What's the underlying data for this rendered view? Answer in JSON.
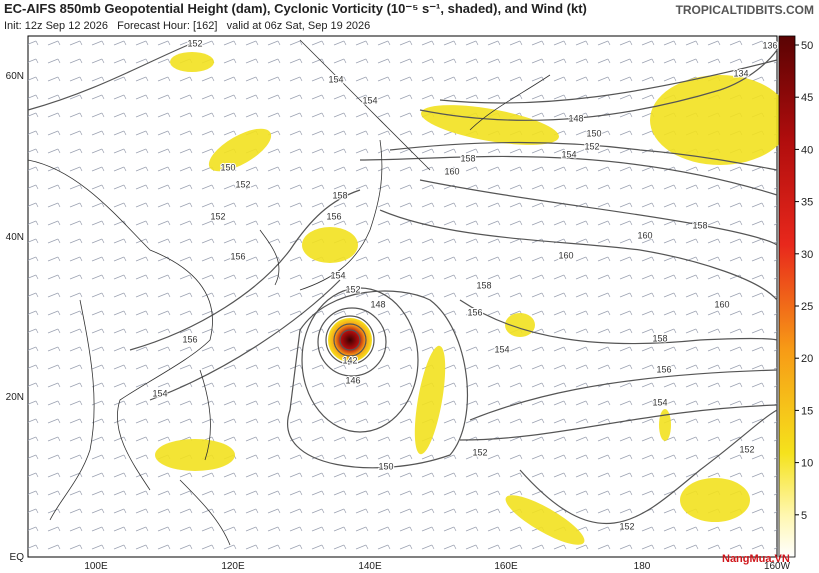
{
  "header": {
    "title": "EC-AIFS 850mb Geopotential Height (dam), Cyclonic Vorticity (10⁻⁵ s⁻¹, shaded), and Wind (kt)",
    "subtitle": "Init: 12z Sep 12 2026   Forecast Hour: [162]   valid at 06z Sat, Sep 19 2026",
    "source": "TROPICALTIDBITS.COM"
  },
  "map": {
    "lat_labels": [
      "60N",
      "40N",
      "20N",
      "EQ"
    ],
    "lon_labels": [
      "100E",
      "120E",
      "140E",
      "160E",
      "180",
      "160W"
    ],
    "contour_labels": [
      152,
      154,
      154,
      150,
      152,
      152,
      156,
      158,
      156,
      154,
      152,
      148,
      142,
      146,
      150,
      152,
      156,
      154,
      158,
      160,
      160,
      158,
      160,
      158,
      156,
      154,
      152,
      152,
      148,
      150,
      152,
      154,
      158,
      160,
      156,
      154,
      136,
      134
    ]
  },
  "colorbar": {
    "ticks": [
      5,
      10,
      15,
      20,
      25,
      30,
      35,
      40,
      45,
      50
    ]
  },
  "watermark": "NangMua.VN"
}
